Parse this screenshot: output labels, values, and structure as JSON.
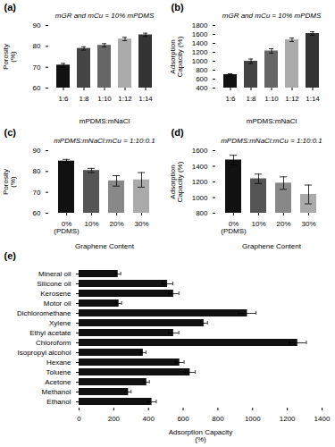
{
  "chart_data": [
    {
      "type": "bar",
      "title": "mGR and mCu = 10% mPDMS",
      "annotations": [
        "(a)"
      ],
      "categories": [
        "1:6",
        "1:8",
        "1:10",
        "1:12",
        "1:14"
      ],
      "values": [
        71,
        79,
        80.5,
        83.5,
        85.5
      ],
      "errors": [
        0.8,
        0.8,
        0.8,
        0.8,
        0.8
      ],
      "colors": [
        "#111111",
        "#444444",
        "#666666",
        "#aaaaaa",
        "#333333"
      ],
      "xlabel": "mPDMS:mNaCl",
      "ylabel": "Porosity\n(%)",
      "ylim": [
        60,
        90
      ],
      "yticks": [
        60,
        70,
        80,
        90
      ]
    },
    {
      "type": "bar",
      "title": "mGR and mCu = 10% mPDMS",
      "annotations": [
        "(b)"
      ],
      "categories": [
        "1:6",
        "1:8",
        "1:10",
        "1:12",
        "1:14"
      ],
      "values": [
        700,
        1000,
        1230,
        1480,
        1620
      ],
      "errors": [
        20,
        50,
        50,
        40,
        40
      ],
      "colors": [
        "#111111",
        "#444444",
        "#666666",
        "#aaaaaa",
        "#333333"
      ],
      "xlabel": "mPDMS:mNaCl",
      "ylabel": "Adsorption\nCapacity (%)",
      "ylim": [
        400,
        1800
      ],
      "yticks": [
        400,
        600,
        800,
        1000,
        1200,
        1400,
        1600,
        1800
      ]
    },
    {
      "type": "bar",
      "title": "mPDMS:mNaCl:mCu = 1:10:0.1",
      "annotations": [
        "(c)"
      ],
      "categories": [
        "0%\n(PDMS)",
        "10%",
        "20%",
        "30%"
      ],
      "values": [
        85,
        80.5,
        75.5,
        76
      ],
      "errors": [
        0.8,
        1.0,
        2.5,
        3.5
      ],
      "colors": [
        "#111111",
        "#555555",
        "#888888",
        "#aaaaaa"
      ],
      "xlabel": "Graphene Content",
      "ylabel": "Porosity\n(%)",
      "ylim": [
        60,
        90
      ],
      "yticks": [
        60,
        70,
        80,
        90
      ]
    },
    {
      "type": "bar",
      "title": "mPDMS:mNaCl:mCu = 1:10:0.1",
      "annotations": [
        "(d)"
      ],
      "categories": [
        "0%\n(PDMS)",
        "10%",
        "20%",
        "30%"
      ],
      "values": [
        1480,
        1240,
        1185,
        1040
      ],
      "errors": [
        60,
        60,
        80,
        120
      ],
      "colors": [
        "#111111",
        "#555555",
        "#888888",
        "#aaaaaa"
      ],
      "xlabel": "Graphene Content",
      "ylabel": "Adsorption\nCapacity (%)",
      "ylim": [
        800,
        1600
      ],
      "yticks": [
        800,
        1000,
        1200,
        1400,
        1600
      ]
    },
    {
      "type": "bar",
      "orientation": "horizontal",
      "annotations": [
        "(e)"
      ],
      "categories": [
        "Mineral oil",
        "Silicone oil",
        "Kerosene",
        "Motor oil",
        "Dichloromethane",
        "Xylene",
        "Ethyl acetate",
        "Chloroform",
        "Isopropyl alcohol",
        "Hexane",
        "Toluene",
        "Acetone",
        "Methanol",
        "Ethanol"
      ],
      "values": [
        225,
        510,
        545,
        230,
        970,
        720,
        545,
        1260,
        370,
        580,
        640,
        390,
        285,
        420
      ],
      "errors": [
        15,
        30,
        30,
        15,
        50,
        20,
        30,
        50,
        15,
        25,
        30,
        15,
        15,
        25
      ],
      "color": "#111111",
      "xlabel": "Adsorption Capacity\n(%)",
      "xlim": [
        0,
        1400
      ],
      "xticks": [
        0,
        200,
        400,
        600,
        800,
        1000,
        1200,
        1400
      ]
    }
  ]
}
